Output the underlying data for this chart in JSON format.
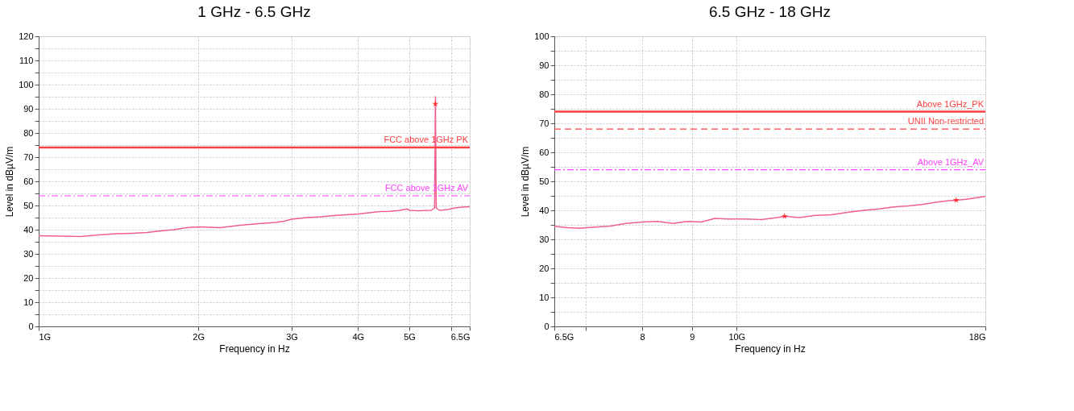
{
  "chart_data": [
    {
      "type": "line",
      "title": "1 GHz - 6.5 GHz",
      "xlabel": "Frequency in Hz",
      "ylabel": "Level in dBµV/m",
      "log": "x",
      "grid": true,
      "xlim": [
        1,
        6.5
      ],
      "xticks": [
        {
          "value": 1,
          "label": "1G"
        },
        {
          "value": 2,
          "label": "2G"
        },
        {
          "value": 3,
          "label": "3G"
        },
        {
          "value": 4,
          "label": "4G"
        },
        {
          "value": 5,
          "label": "5G"
        },
        {
          "value": 6,
          "label": null
        },
        {
          "value": 6.5,
          "label": "6.5G"
        }
      ],
      "ylim": [
        0,
        120
      ],
      "yticks": [
        0,
        {
          "value": 5,
          "label": null
        },
        10,
        {
          "value": 15,
          "label": null
        },
        20,
        {
          "value": 25,
          "label": null
        },
        30,
        {
          "value": 35,
          "label": null
        },
        40,
        {
          "value": 45,
          "label": null
        },
        50,
        {
          "value": 55,
          "label": null
        },
        60,
        {
          "value": 65,
          "label": null
        },
        70,
        {
          "value": 75,
          "label": null
        },
        80,
        {
          "value": 85,
          "label": null
        },
        90,
        {
          "value": 95,
          "label": null
        },
        100,
        {
          "value": 105,
          "label": null
        },
        110,
        {
          "value": 115,
          "label": null
        },
        120
      ],
      "series": [
        {
          "color": "#f0608c",
          "line_style": "solid",
          "marker": "none",
          "x": [
            1.0,
            1.1,
            1.2,
            1.3,
            1.4,
            1.5,
            1.6,
            1.7,
            1.8,
            1.9,
            2.0,
            2.1,
            2.2,
            2.4,
            2.6,
            2.8,
            2.9,
            3.0,
            3.2,
            3.4,
            3.6,
            3.8,
            4.0,
            4.2,
            4.4,
            4.6,
            4.8,
            4.95,
            5.0,
            5.2,
            5.5,
            5.58,
            5.6,
            5.62,
            5.7,
            5.9,
            6.1,
            6.3,
            6.5
          ],
          "values": [
            37.5,
            37.3,
            37.2,
            37.8,
            38.3,
            38.5,
            38.8,
            39.5,
            40,
            40.8,
            41.2,
            41,
            40.8,
            41.8,
            42.5,
            43,
            43.5,
            44.3,
            45,
            45.3,
            45.8,
            46.2,
            46.5,
            47,
            47.5,
            47.6,
            48,
            48.6,
            48,
            47.8,
            48,
            49,
            95,
            49,
            48,
            48.3,
            49,
            49.3,
            49.5
          ]
        },
        {
          "type": "scatter",
          "color": "#ff0000",
          "marker": "star",
          "x": [
            5.6
          ],
          "values": [
            92
          ]
        }
      ],
      "ref_lines": [
        {
          "axis": "y",
          "value": 74,
          "label": "FCC above 1GHz PK",
          "color": "#ff4040",
          "line_style": "solid"
        },
        {
          "axis": "y",
          "value": 54,
          "label": "FCC above 1GHz AV",
          "color": "#ff40ff",
          "line_style": "dashdot"
        }
      ]
    },
    {
      "type": "line",
      "title": "6.5 GHz - 18 GHz",
      "xlabel": "Frequency in Hz",
      "ylabel": "Level in dBµV/m",
      "log": "x",
      "grid": true,
      "xlim": [
        6.5,
        18
      ],
      "xticks": [
        {
          "value": 6.5,
          "label": "6.5G"
        },
        {
          "value": 7,
          "label": null
        },
        8,
        9,
        {
          "value": 10,
          "label": "10G"
        },
        {
          "value": 18,
          "label": "18G"
        }
      ],
      "ylim": [
        0,
        100
      ],
      "yticks": [
        0,
        {
          "value": 5,
          "label": null
        },
        10,
        {
          "value": 15,
          "label": null
        },
        20,
        {
          "value": 25,
          "label": null
        },
        30,
        {
          "value": 35,
          "label": null
        },
        40,
        {
          "value": 45,
          "label": null
        },
        50,
        {
          "value": 55,
          "label": null
        },
        60,
        {
          "value": 65,
          "label": null
        },
        70,
        {
          "value": 75,
          "label": null
        },
        80,
        {
          "value": 85,
          "label": null
        },
        90,
        {
          "value": 95,
          "label": null
        },
        100
      ],
      "series": [
        {
          "color": "#f0608c",
          "line_style": "solid",
          "marker": "none",
          "x": [
            6.5,
            6.7,
            6.9,
            7.1,
            7.4,
            7.7,
            8.0,
            8.3,
            8.6,
            8.9,
            9.2,
            9.5,
            9.8,
            10.2,
            10.6,
            11.0,
            11.2,
            11.6,
            12.0,
            12.5,
            13.0,
            13.5,
            14.0,
            14.5,
            15.0,
            15.5,
            16.0,
            16.5,
            16.8,
            17.2,
            17.6,
            18.0
          ],
          "values": [
            34.5,
            34,
            33.8,
            34.2,
            34.5,
            35.5,
            36,
            36.2,
            35.5,
            36.2,
            36,
            37.2,
            37,
            37,
            36.8,
            37.5,
            38,
            37.5,
            38.2,
            38.5,
            39.3,
            40,
            40.5,
            41.2,
            41.5,
            42,
            42.8,
            43.3,
            43.5,
            43.8,
            44.3,
            44.8
          ]
        },
        {
          "type": "scatter",
          "color": "#ff0000",
          "marker": "star",
          "x": [
            11.2,
            16.8
          ],
          "values": [
            38,
            43.5
          ]
        }
      ],
      "ref_lines": [
        {
          "axis": "y",
          "value": 74,
          "label": "Above 1GHz_PK",
          "color": "#ff4040",
          "line_style": "solid"
        },
        {
          "axis": "y",
          "value": 68,
          "label": "UNII Non-restricted",
          "color": "#ff4040",
          "line_style": "dashed"
        },
        {
          "axis": "y",
          "value": 54,
          "label": "Above 1GHz_AV",
          "color": "#ff40ff",
          "line_style": "dashdot"
        }
      ]
    }
  ]
}
